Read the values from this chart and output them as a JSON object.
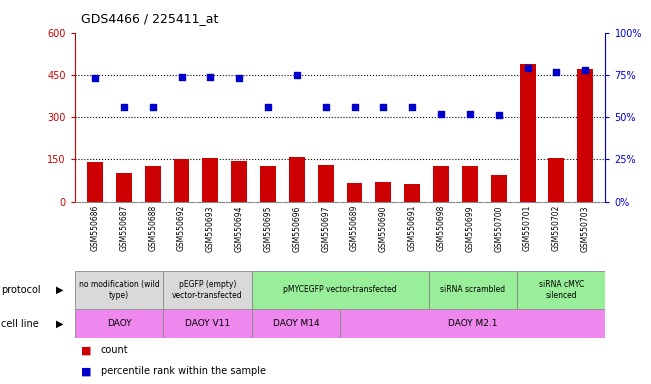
{
  "title": "GDS4466 / 225411_at",
  "samples": [
    "GSM550686",
    "GSM550687",
    "GSM550688",
    "GSM550692",
    "GSM550693",
    "GSM550694",
    "GSM550695",
    "GSM550696",
    "GSM550697",
    "GSM550689",
    "GSM550690",
    "GSM550691",
    "GSM550698",
    "GSM550699",
    "GSM550700",
    "GSM550701",
    "GSM550702",
    "GSM550703"
  ],
  "counts": [
    140,
    100,
    128,
    150,
    155,
    145,
    125,
    158,
    130,
    65,
    68,
    62,
    128,
    125,
    95,
    490,
    155,
    470
  ],
  "percentiles": [
    73,
    56,
    56,
    74,
    74,
    73,
    56,
    75,
    56,
    56,
    56,
    56,
    52,
    52,
    51,
    79,
    77,
    78
  ],
  "ylim_left": [
    0,
    600
  ],
  "ylim_right": [
    0,
    100
  ],
  "yticks_left": [
    0,
    150,
    300,
    450,
    600
  ],
  "yticks_right": [
    0,
    25,
    50,
    75,
    100
  ],
  "bar_color": "#cc0000",
  "scatter_color": "#0000cc",
  "protocols": [
    {
      "label": "no modification (wild\ntype)",
      "start": 0,
      "end": 3,
      "color": "#d9d9d9"
    },
    {
      "label": "pEGFP (empty)\nvector-transfected",
      "start": 3,
      "end": 6,
      "color": "#d9d9d9"
    },
    {
      "label": "pMYCEGFP vector-transfected",
      "start": 6,
      "end": 12,
      "color": "#99ee99"
    },
    {
      "label": "siRNA scrambled",
      "start": 12,
      "end": 15,
      "color": "#99ee99"
    },
    {
      "label": "siRNA cMYC\nsilenced",
      "start": 15,
      "end": 18,
      "color": "#99ee99"
    }
  ],
  "cell_lines": [
    {
      "label": "DAOY",
      "start": 0,
      "end": 3,
      "color": "#ee88ee"
    },
    {
      "label": "DAOY V11",
      "start": 3,
      "end": 6,
      "color": "#ee88ee"
    },
    {
      "label": "DAOY M14",
      "start": 6,
      "end": 9,
      "color": "#ee88ee"
    },
    {
      "label": "DAOY M2.1",
      "start": 9,
      "end": 18,
      "color": "#ee88ee"
    }
  ],
  "legend_count_color": "#cc0000",
  "legend_scatter_color": "#0000cc",
  "bg_color": "#ffffff",
  "left_axis_color": "#cc0000",
  "right_axis_color": "#0000cc",
  "ax_bg_color": "#ffffff",
  "tick_area_color": "#d0d0d0"
}
